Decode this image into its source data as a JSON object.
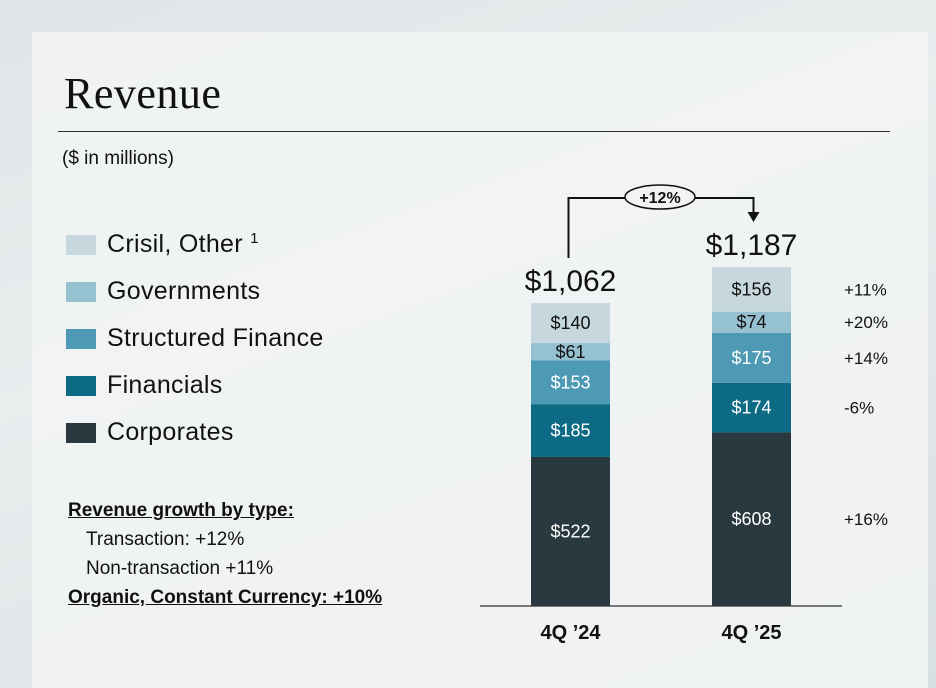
{
  "title": "Revenue",
  "subtitle": "($ in millions)",
  "legend": [
    {
      "label": "Crisil, Other",
      "footnote": "1",
      "color": "#c6d7de"
    },
    {
      "label": "Governments",
      "color": "#95c1d0"
    },
    {
      "label": "Structured Finance",
      "color": "#4e99b3"
    },
    {
      "label": "Financials",
      "color": "#0d6a84"
    },
    {
      "label": "Corporates",
      "color": "#29393f"
    }
  ],
  "growth": {
    "heading": "Revenue growth by type:",
    "transaction": "Transaction: +12%",
    "non_transaction": "Non-transaction +11%",
    "organic": "Organic, Constant Currency: +10%"
  },
  "chart_data": {
    "type": "bar",
    "stacked": true,
    "title": "Revenue",
    "ylabel": "$ in millions",
    "categories": [
      "4Q ’24",
      "4Q ’25"
    ],
    "series": [
      {
        "name": "Corporates",
        "values": [
          522,
          608
        ],
        "labels": [
          "$522",
          "$608"
        ],
        "color": "#29393f",
        "text_color": "#ffffff",
        "growth": "+16%"
      },
      {
        "name": "Financials",
        "values": [
          185,
          174
        ],
        "labels": [
          "$185",
          "$174"
        ],
        "color": "#0d6a84",
        "text_color": "#ffffff",
        "growth": "-6%"
      },
      {
        "name": "Structured Finance",
        "values": [
          153,
          175
        ],
        "labels": [
          "$153",
          "$175"
        ],
        "color": "#4e99b3",
        "text_color": "#ffffff",
        "growth": "+14%"
      },
      {
        "name": "Governments",
        "values": [
          61,
          74
        ],
        "labels": [
          "$61",
          "$74"
        ],
        "color": "#95c1d0",
        "text_color": "#111111",
        "growth": "+20%"
      },
      {
        "name": "Crisil, Other",
        "values": [
          140,
          156
        ],
        "labels": [
          "$140",
          "$156"
        ],
        "color": "#c6d7de",
        "text_color": "#111111",
        "growth": "+11%"
      }
    ],
    "totals": [
      1062,
      1187
    ],
    "total_labels": [
      "$1,062",
      "$1,187"
    ],
    "change_label": "+12%"
  }
}
